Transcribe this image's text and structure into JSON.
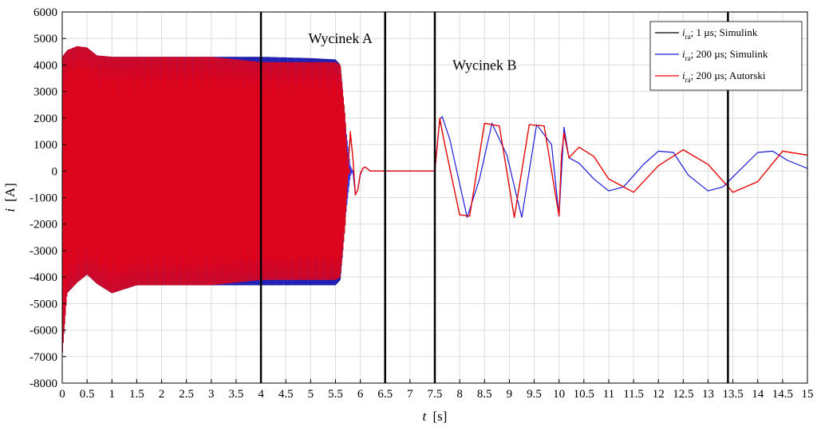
{
  "chart_data": {
    "type": "line",
    "xlabel_var": "t",
    "xlabel_unit": "[s]",
    "ylabel_var": "i",
    "ylabel_unit": "[A]",
    "xlim": [
      0,
      15
    ],
    "ylim": [
      -8000,
      6000
    ],
    "xticks": [
      0,
      0.5,
      1,
      1.5,
      2,
      2.5,
      3,
      3.5,
      4,
      4.5,
      5,
      5.5,
      6,
      6.5,
      7,
      7.5,
      8,
      8.5,
      9,
      9.5,
      10,
      10.5,
      11,
      11.5,
      12,
      12.5,
      13,
      13.5,
      14,
      14.5,
      15
    ],
    "yticks": [
      -8000,
      -7000,
      -6000,
      -5000,
      -4000,
      -3000,
      -2000,
      -1000,
      0,
      1000,
      2000,
      3000,
      4000,
      5000,
      6000
    ],
    "grid": true,
    "legend_position": "top-right",
    "vertical_markers": [
      4,
      6.5,
      7.5,
      13.4
    ],
    "annotations": [
      {
        "text": "Wycinek A",
        "x": 5.6,
        "y": 5000
      },
      {
        "text": "Wycinek B",
        "x": 8.5,
        "y": 4000
      }
    ],
    "series": [
      {
        "name_var": "i",
        "name_sub": "ra",
        "name_rest": "; 1 µs; Simulink",
        "color": "#000000",
        "segments": [
          {
            "kind": "envelope",
            "t": [
              0,
              0.1,
              0.3,
              0.5,
              0.7,
              1.0,
              1.5,
              2,
              3,
              4,
              5,
              5.5,
              5.6,
              5.7,
              5.75,
              5.8
            ],
            "upper": [
              4300,
              4550,
              4700,
              4650,
              4350,
              4300,
              4300,
              4300,
              4300,
              4300,
              4250,
              4200,
              4000,
              2000,
              200,
              0
            ],
            "lower": [
              -7000,
              -4600,
              -4200,
              -3900,
              -4250,
              -4600,
              -4300,
              -4300,
              -4300,
              -4300,
              -4300,
              -4300,
              -4100,
              -2000,
              -200,
              0
            ]
          },
          {
            "kind": "points",
            "t": [
              5.75,
              5.8,
              5.85,
              5.9,
              5.95,
              6.0,
              6.05,
              6.1,
              6.2,
              6.3,
              7.5
            ],
            "y": [
              0,
              1400,
              500,
              -900,
              -700,
              -100,
              100,
              150,
              0,
              0,
              0
            ]
          },
          {
            "kind": "points",
            "t": [
              7.5,
              7.6,
              7.7,
              8.0,
              8.2,
              8.5,
              8.8,
              9.1,
              9.4,
              9.7,
              10.0,
              10.05,
              10.1,
              10.2,
              10.4,
              10.7,
              11.0,
              11.5,
              12.0,
              12.5,
              13.0,
              13.5,
              14.0,
              14.5,
              15.0
            ],
            "y": [
              0,
              1950,
              1000,
              -1650,
              -1700,
              1800,
              1700,
              -1750,
              1750,
              1700,
              -1700,
              600,
              1400,
              500,
              900,
              550,
              -300,
              -800,
              200,
              800,
              250,
              -800,
              -400,
              750,
              600
            ]
          }
        ]
      },
      {
        "name_var": "i",
        "name_sub": "ra",
        "name_rest": "; 200 µs; Simulink",
        "color": "#1a1adc",
        "segments": [
          {
            "kind": "envelope",
            "t": [
              0,
              0.1,
              0.3,
              0.5,
              0.7,
              1.0,
              1.5,
              2,
              3,
              4,
              5,
              5.5,
              5.6,
              5.7,
              5.8,
              5.85
            ],
            "upper": [
              4300,
              4550,
              4700,
              4650,
              4350,
              4300,
              4300,
              4300,
              4300,
              4300,
              4250,
              4200,
              4000,
              1800,
              200,
              0
            ],
            "lower": [
              -7000,
              -4600,
              -4200,
              -3900,
              -4250,
              -4600,
              -4300,
              -4300,
              -4300,
              -4300,
              -4300,
              -4300,
              -4100,
              -1800,
              -200,
              0
            ]
          },
          {
            "kind": "points",
            "t": [
              5.85,
              5.9,
              5.95,
              6.0,
              6.05,
              6.1,
              6.2,
              6.3,
              7.5
            ],
            "y": [
              0,
              -900,
              -700,
              -150,
              100,
              150,
              0,
              0,
              0
            ]
          },
          {
            "kind": "points",
            "t": [
              7.5,
              7.6,
              7.65,
              7.8,
              8.15,
              8.4,
              8.65,
              8.95,
              9.25,
              9.55,
              9.85,
              10.0,
              10.1,
              10.2,
              10.3,
              10.4,
              10.7,
              11.0,
              11.3,
              11.7,
              12.0,
              12.3,
              12.6,
              13.0,
              13.3,
              13.7,
              14.0,
              14.3,
              14.6,
              15.0
            ],
            "y": [
              0,
              1950,
              2050,
              1200,
              -1750,
              -300,
              1800,
              600,
              -1750,
              1750,
              1000,
              -1700,
              1650,
              500,
              400,
              300,
              -300,
              -750,
              -600,
              250,
              750,
              700,
              -150,
              -750,
              -600,
              150,
              700,
              750,
              400,
              100
            ]
          }
        ]
      },
      {
        "name_var": "i",
        "name_sub": "ra",
        "name_rest": "; 200 µs; Autorski",
        "color": "#ff0000",
        "segments": [
          {
            "kind": "envelope",
            "t": [
              0,
              0.1,
              0.3,
              0.5,
              0.7,
              1.0,
              1.5,
              2,
              3,
              3.5,
              4,
              4.5,
              5,
              5.5,
              5.6,
              5.7,
              5.75,
              5.8
            ],
            "upper": [
              4300,
              4550,
              4700,
              4650,
              4350,
              4300,
              4300,
              4300,
              4300,
              4200,
              4100,
              4100,
              4100,
              4100,
              4000,
              2000,
              200,
              0
            ],
            "lower": [
              -7000,
              -4600,
              -4200,
              -3900,
              -4250,
              -4600,
              -4300,
              -4300,
              -4300,
              -4200,
              -4100,
              -4100,
              -4100,
              -4100,
              -4000,
              -2000,
              -200,
              0
            ]
          },
          {
            "kind": "points",
            "t": [
              5.75,
              5.8,
              5.85,
              5.9,
              5.95,
              6.0,
              6.05,
              6.1,
              6.2,
              6.3,
              7.5
            ],
            "y": [
              0,
              1500,
              500,
              -900,
              -700,
              -100,
              100,
              150,
              0,
              0,
              0
            ]
          },
          {
            "kind": "points",
            "t": [
              7.5,
              7.6,
              7.7,
              8.0,
              8.2,
              8.5,
              8.8,
              9.1,
              9.4,
              9.7,
              10.0,
              10.05,
              10.1,
              10.2,
              10.4,
              10.7,
              11.0,
              11.5,
              12.0,
              12.5,
              13.0,
              13.5,
              14.0,
              14.5,
              15.0
            ],
            "y": [
              0,
              2000,
              1000,
              -1650,
              -1700,
              1800,
              1700,
              -1750,
              1750,
              1700,
              -1700,
              600,
              1450,
              500,
              900,
              550,
              -300,
              -800,
              200,
              800,
              250,
              -800,
              -400,
              750,
              600
            ]
          }
        ]
      }
    ]
  }
}
